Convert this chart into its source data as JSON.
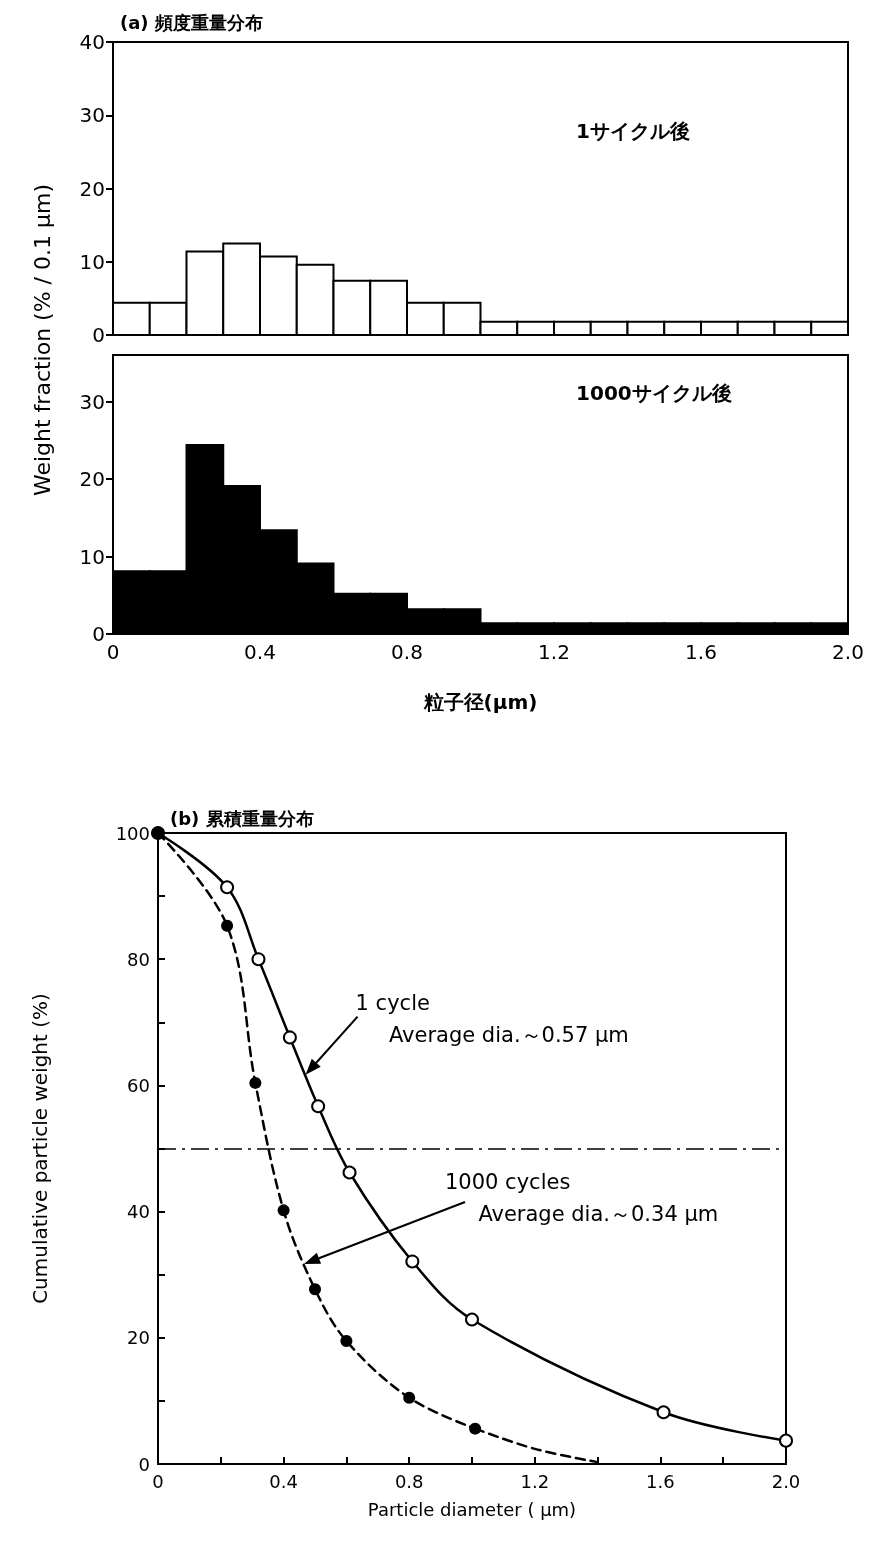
{
  "chart_data": [
    {
      "type": "histogram",
      "title": "(a) 頻度重量分布",
      "ylabel": "Weight fraction (% / 0.1 μm)",
      "annotations": [
        "1サイクル後"
      ],
      "bins": [
        0,
        0.1,
        0.2,
        0.3,
        0.4,
        0.5,
        0.6,
        0.7,
        0.8,
        0.9,
        1.0,
        1.1,
        1.2,
        1.3,
        1.4,
        1.5,
        1.6,
        1.7,
        1.8,
        1.9,
        2.0
      ],
      "values": [
        4.4,
        4.4,
        11.4,
        12.5,
        10.7,
        9.6,
        7.4,
        7.4,
        4.4,
        4.4,
        1.8,
        1.8,
        1.8,
        1.8,
        1.8,
        1.8,
        1.8,
        1.8,
        1.8,
        1.8
      ],
      "color": "#ffffff",
      "xlim": [
        0,
        2
      ],
      "xticks": [
        0,
        {
          "value": 0.1,
          "label": null
        },
        {
          "value": 0.2,
          "label": null
        },
        {
          "value": 0.3,
          "label": null
        },
        0.4,
        {
          "value": 0.5,
          "label": null
        },
        {
          "value": 0.6,
          "label": null
        },
        {
          "value": 0.7,
          "label": null
        },
        0.8,
        {
          "value": 0.9,
          "label": null
        },
        {
          "value": 1,
          "label": null
        },
        {
          "value": 1.1,
          "label": null
        },
        1.2,
        {
          "value": 1.3,
          "label": null
        },
        {
          "value": 1.4,
          "label": null
        },
        {
          "value": 1.5,
          "label": null
        },
        1.6,
        {
          "value": 1.7,
          "label": null
        },
        {
          "value": 1.8,
          "label": null
        },
        {
          "value": 1.9,
          "label": null
        },
        {
          "value": 2,
          "label": null
        }
      ],
      "ylim": [
        0,
        40
      ],
      "yticks": [
        0,
        10,
        20,
        30,
        40
      ],
      "tick_labels": "y"
    },
    {
      "type": "histogram",
      "xlabel": "粒子径(μm)",
      "annotations": [
        "1000サイクル後"
      ],
      "bins": [
        0,
        0.1,
        0.2,
        0.3,
        0.4,
        0.5,
        0.6,
        0.7,
        0.8,
        0.9,
        1.0,
        1.1,
        1.2,
        1.3,
        1.4,
        1.5,
        1.6,
        1.7,
        1.8,
        1.9,
        2.0
      ],
      "values": [
        8.1,
        8.1,
        24.4,
        19.1,
        13.4,
        9.1,
        5.2,
        5.2,
        3.2,
        3.2,
        1.4,
        1.4,
        1.4,
        1.4,
        1.4,
        1.4,
        1.4,
        1.4,
        1.4,
        1.4
      ],
      "color": "#000000",
      "xlim": [
        0,
        2
      ],
      "xticks": [
        0,
        {
          "value": 0.1,
          "label": null
        },
        {
          "value": 0.2,
          "label": null
        },
        {
          "value": 0.3,
          "label": null
        },
        0.4,
        {
          "value": 0.5,
          "label": null
        },
        {
          "value": 0.6,
          "label": null
        },
        {
          "value": 0.7,
          "label": null
        },
        0.8,
        {
          "value": 0.9,
          "label": null
        },
        {
          "value": 1,
          "label": null
        },
        {
          "value": 1.1,
          "label": null
        },
        1.2,
        {
          "value": 1.3,
          "label": null
        },
        {
          "value": 1.4,
          "label": null
        },
        {
          "value": 1.5,
          "label": null
        },
        1.6,
        {
          "value": 1.7,
          "label": null
        },
        {
          "value": 1.8,
          "label": null
        },
        {
          "value": 1.9,
          "label": null
        },
        {
          "value": 2,
          "label": "2.0"
        }
      ],
      "ylim": [
        0,
        36
      ],
      "yticks": [
        0,
        10,
        20,
        30
      ]
    },
    {
      "type": "line",
      "title": "(b) 累積重量分布",
      "xlabel": "Particle diameter ( μm)",
      "ylabel": "Cumulative particle weight (%)",
      "xlim": [
        0,
        2
      ],
      "xticks": [
        0,
        {
          "value": 0.2,
          "label": null
        },
        0.4,
        {
          "value": 0.6,
          "label": null
        },
        0.8,
        {
          "value": 1,
          "label": null
        },
        1.2,
        {
          "value": 1.4,
          "label": null
        },
        1.6,
        {
          "value": 1.8,
          "label": null
        },
        {
          "value": 2,
          "label": "2.0"
        }
      ],
      "ylim": [
        0,
        100
      ],
      "yticks": [
        0,
        {
          "value": 10,
          "label": null
        },
        20,
        {
          "value": 30,
          "label": null
        },
        40,
        {
          "value": 50,
          "label": null
        },
        60,
        {
          "value": 70,
          "label": null
        },
        80,
        {
          "value": 90,
          "label": null
        },
        100
      ],
      "series": [
        {
          "color": "#000000",
          "marker": "circle",
          "line_style": "solid",
          "x": [
            0,
            0.22,
            0.32,
            0.42,
            0.51,
            0.61,
            0.81,
            1.0,
            1.61,
            2.0
          ],
          "values": [
            100,
            91.4,
            80.0,
            67.6,
            56.7,
            46.2,
            32.1,
            22.9,
            8.2,
            3.7
          ]
        },
        {
          "color": "#000000",
          "marker": "circle",
          "line_style": "dashed",
          "x": [
            0,
            0.22,
            0.31,
            0.4,
            0.5,
            0.6,
            0.8,
            1.01
          ],
          "values": [
            100,
            85.3,
            60.4,
            40.2,
            27.7,
            19.5,
            10.5,
            5.6
          ]
        },
        {
          "type": "line",
          "color": "#000000",
          "marker": "none",
          "line_style": "dashed",
          "x": [
            1.01,
            1.2,
            1.4
          ],
          "values": [
            5.6,
            2.4,
            0.3
          ]
        }
      ],
      "ref_lines": [
        {
          "axis": "y",
          "value": 50,
          "line_style": "dashdot"
        }
      ],
      "annotations": [
        {
          "text": "1 cycle\n     Average dia.～0.57 μm",
          "x": 0.47,
          "y": 61.7
        },
        "1000 cycles\n     Average dia.～0.34 μm"
      ]
    }
  ]
}
